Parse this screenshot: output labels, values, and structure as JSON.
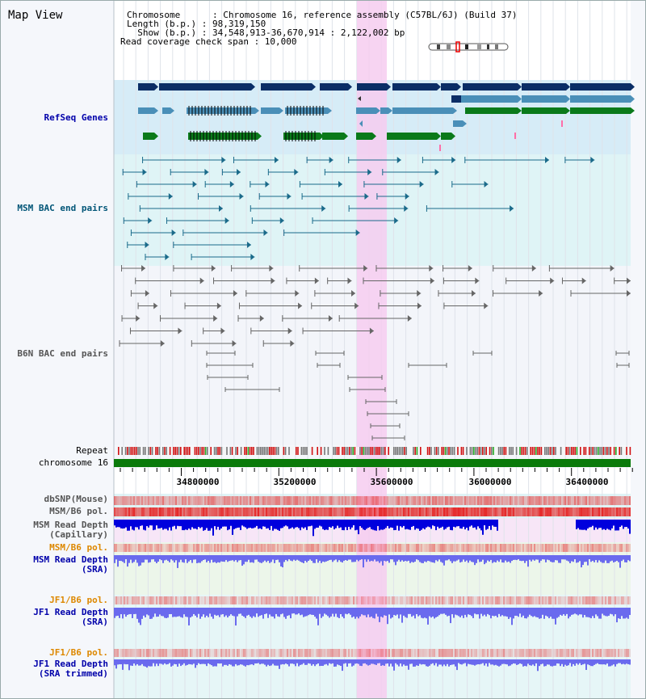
{
  "title": "Map View",
  "header": {
    "chromosome_line": "Chromosome      : Chromosome 16, reference assembly (C57BL/6J) (Build 37)",
    "length_line": "Length (b.p.) : 98,319,150",
    "show_line": "  Show (b.p.) : 34,548,913-36,670,914 : 2,122,002 bp",
    "coverage_line": "Read coverage check span : 10,000"
  },
  "tracks": {
    "refseq": "RefSeq Genes",
    "msm_bac": "MSM BAC end pairs",
    "b6n_bac": "B6N BAC end pairs",
    "repeat": "Repeat",
    "chromosome": "chromosome 16",
    "dbsnp": "dbSNP(Mouse)",
    "msm_pol1": "MSM/B6 pol.",
    "msm_depth_cap": "MSM Read Depth\n(Capillary)",
    "msm_pol2": "MSM/B6 pol.",
    "msm_depth_sra": "MSM Read Depth\n(SRA)",
    "jf1_pol1": "JF1/B6 pol.",
    "jf1_depth_sra": "JF1 Read Depth\n(SRA)",
    "jf1_pol2": "JF1/B6 pol.",
    "jf1_depth_trim": "JF1 Read Depth\n(SRA trimmed)"
  },
  "ruler": {
    "ticks": [
      "34800000",
      "35200000",
      "35600000",
      "36000000",
      "36400000"
    ]
  },
  "colors": {
    "highlight": "#f6ccf0",
    "refseq_dark": "#0b2d66",
    "refseq_mid": "#4a8fb8",
    "refseq_green": "#0a7a1a",
    "msm_line": "#1a6a8a",
    "b6n_line": "#666666",
    "chromosome": "#0a7a0a",
    "depth_dark": "#0000dd",
    "depth_light": "#6a6aee"
  }
}
